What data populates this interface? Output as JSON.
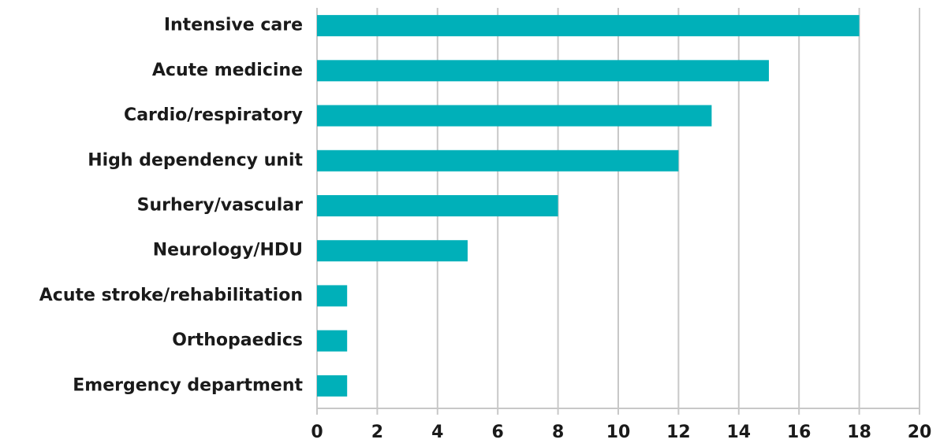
{
  "chart_data": {
    "type": "barh",
    "categories": [
      "Intensive care",
      "Acute medicine",
      "Cardio/respiratory",
      "High dependency unit",
      "Surhery/vascular",
      "Neurology/HDU",
      "Acute stroke/rehabilitation",
      "Orthopaedics",
      "Emergency department"
    ],
    "values": [
      18,
      15,
      13.1,
      12,
      8,
      5,
      1,
      1,
      1
    ],
    "color": "#00b0b9",
    "xlim": [
      0,
      20
    ],
    "xticks": [
      0,
      2,
      4,
      6,
      8,
      10,
      12,
      14,
      16,
      18,
      20
    ],
    "grid": true
  }
}
